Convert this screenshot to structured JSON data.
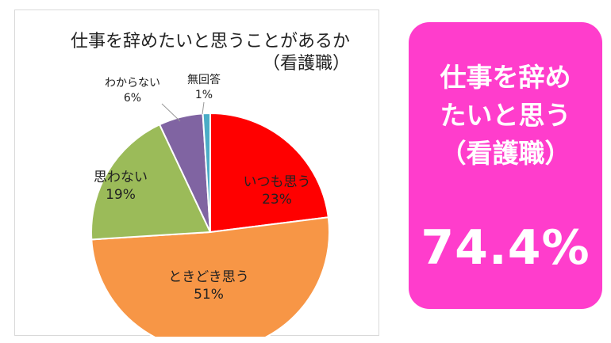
{
  "chart_data": {
    "type": "pie",
    "title": "仕事を辞めたいと思うことがあるか",
    "subtitle": "（看護職）",
    "slices": [
      {
        "label": "いつも思う",
        "value": 23,
        "display": "23%",
        "color": "#ff0000"
      },
      {
        "label": "ときどき思う",
        "value": 51,
        "display": "51%",
        "color": "#f79646"
      },
      {
        "label": "思わない",
        "value": 19,
        "display": "19%",
        "color": "#9bbb59"
      },
      {
        "label": "わからない",
        "value": 6,
        "display": "6%",
        "color": "#8064a2"
      },
      {
        "label": "無回答",
        "value": 1,
        "display": "1%",
        "color": "#4bacc6"
      }
    ]
  },
  "callout": {
    "line1": "仕事を辞め",
    "line2": "たいと思う",
    "line3": "（看護職）",
    "value": "74.4%",
    "color": "#ff3dcc"
  }
}
